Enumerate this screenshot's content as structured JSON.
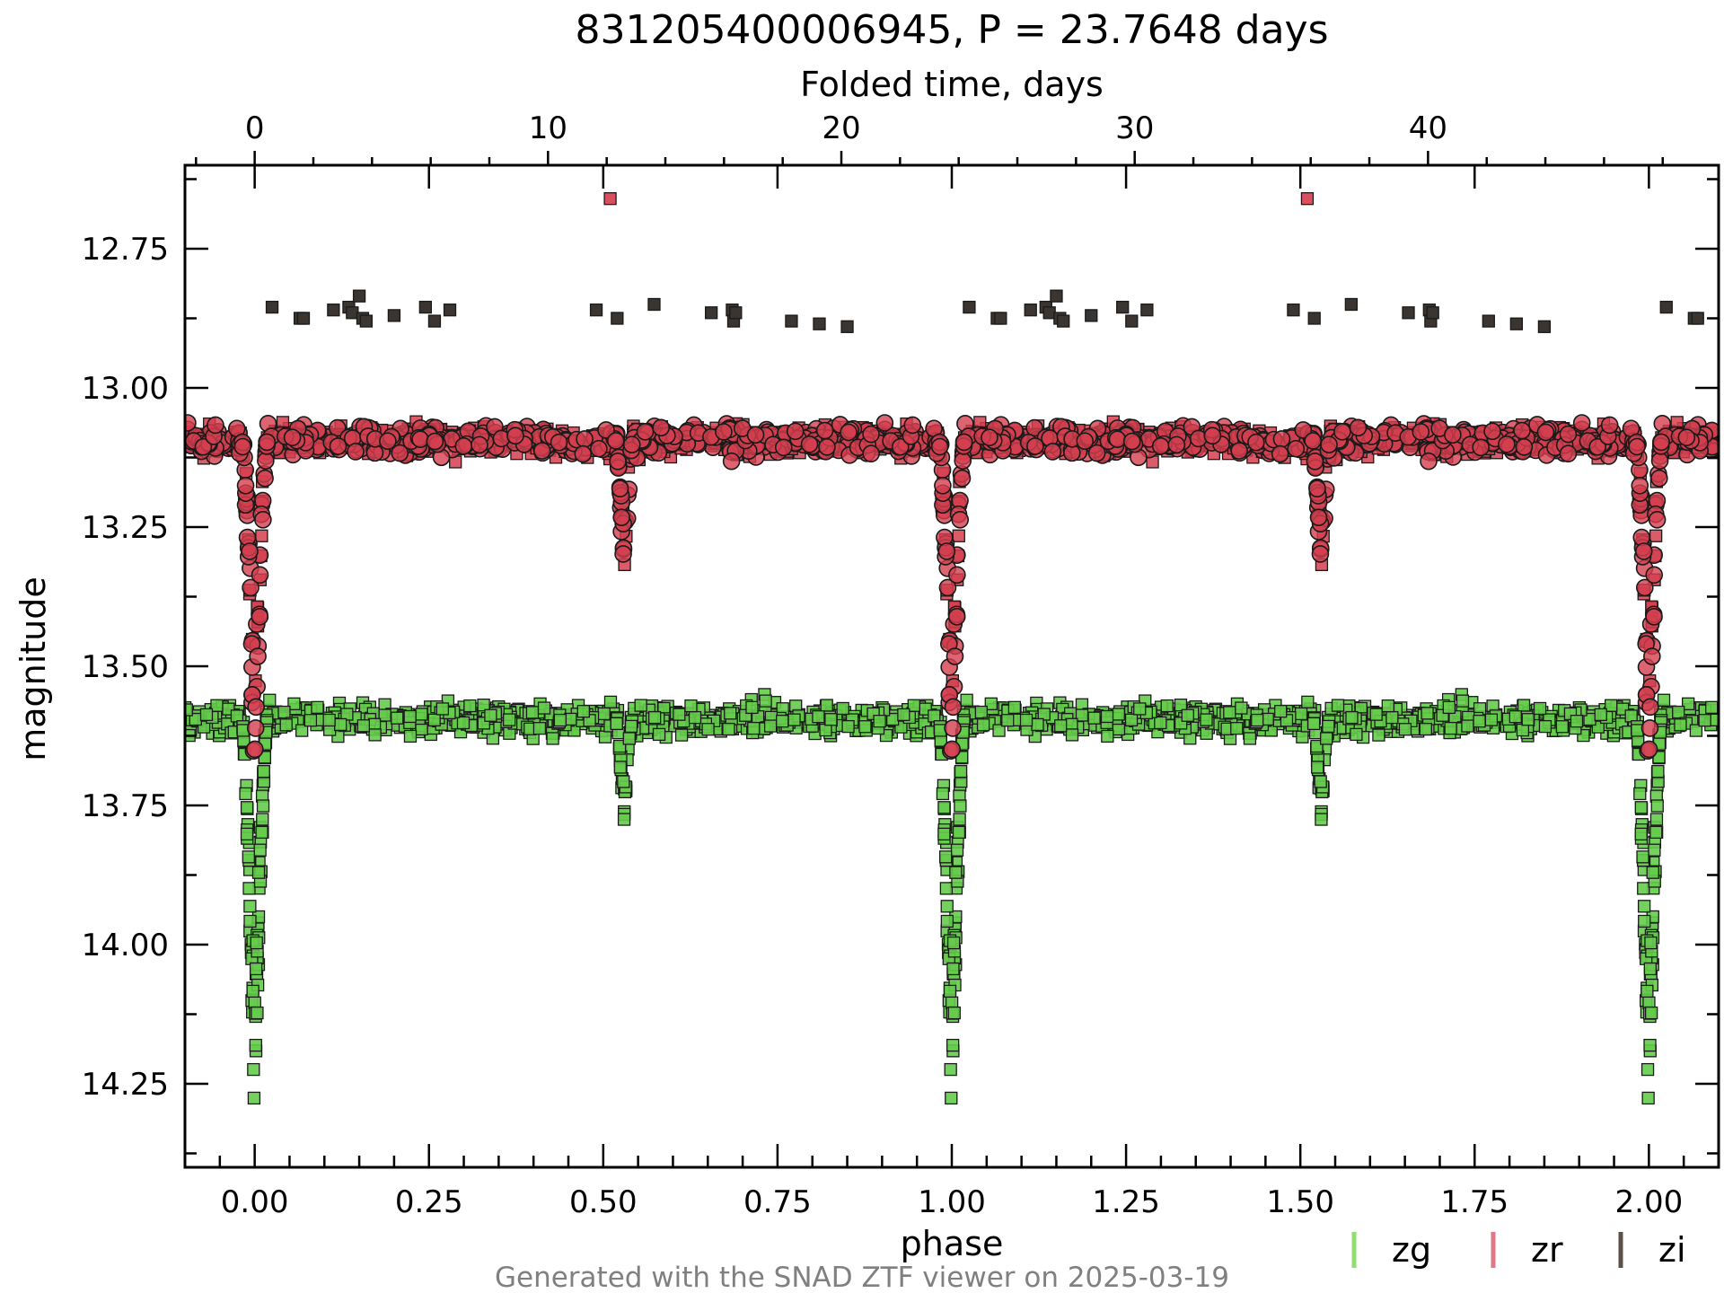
{
  "chart_data": {
    "type": "scatter",
    "title": "831205400006945, P = 23.7648 days",
    "xlabel": "phase",
    "ylabel": "magnitude",
    "top_xlabel": "Folded time, days",
    "period_days": 23.7648,
    "xlim": [
      -0.1,
      2.1
    ],
    "ylim": [
      14.4,
      12.6
    ],
    "y_inverted": true,
    "x_ticks": [
      "0.00",
      "0.25",
      "0.50",
      "0.75",
      "1.00",
      "1.25",
      "1.50",
      "1.75",
      "2.00"
    ],
    "y_ticks": [
      "12.75",
      "13.00",
      "13.25",
      "13.50",
      "13.75",
      "14.00",
      "14.25"
    ],
    "top_ticks": [
      "0",
      "10",
      "20",
      "30",
      "40"
    ],
    "grid": false,
    "legend_position": "below-right",
    "footer": "Generated with the SNAD ZTF viewer on 2025-03-19",
    "series": [
      {
        "name": "zg",
        "color": "#66cc4d",
        "legend_color": "#90dd70",
        "baseline": 13.595,
        "scatter": 0.014,
        "eclipses": [
          {
            "phase": 0.0,
            "depth_mag": 14.33,
            "halfwidth": 0.018
          },
          {
            "phase": 0.53,
            "depth_mag": 13.79,
            "halfwidth": 0.012
          }
        ]
      },
      {
        "name": "zr",
        "color": "#d53e4f",
        "legend_color": "#e07686",
        "baseline": 13.095,
        "scatter": 0.013,
        "eclipses": [
          {
            "phase": 0.0,
            "depth_mag": 13.73,
            "halfwidth": 0.018
          },
          {
            "phase": 0.53,
            "depth_mag": 13.37,
            "halfwidth": 0.012
          }
        ],
        "outliers": [
          {
            "phase": 0.51,
            "mag": 12.66
          },
          {
            "phase": 1.51,
            "mag": 12.66
          }
        ]
      },
      {
        "name": "zi",
        "color": "#3a3530",
        "legend_color": "#5a524a",
        "points": [
          {
            "phase": 0.025,
            "mag": 12.855
          },
          {
            "phase": 0.065,
            "mag": 12.875
          },
          {
            "phase": 0.07,
            "mag": 12.875
          },
          {
            "phase": 0.113,
            "mag": 12.86
          },
          {
            "phase": 0.135,
            "mag": 12.855
          },
          {
            "phase": 0.14,
            "mag": 12.865
          },
          {
            "phase": 0.15,
            "mag": 12.835
          },
          {
            "phase": 0.155,
            "mag": 12.875
          },
          {
            "phase": 0.16,
            "mag": 12.88
          },
          {
            "phase": 0.2,
            "mag": 12.87
          },
          {
            "phase": 0.245,
            "mag": 12.855
          },
          {
            "phase": 0.258,
            "mag": 12.88
          },
          {
            "phase": 0.28,
            "mag": 12.86
          },
          {
            "phase": 0.49,
            "mag": 12.86
          },
          {
            "phase": 0.52,
            "mag": 12.875
          },
          {
            "phase": 0.573,
            "mag": 12.85
          },
          {
            "phase": 0.655,
            "mag": 12.865
          },
          {
            "phase": 0.685,
            "mag": 12.86
          },
          {
            "phase": 0.687,
            "mag": 12.88
          },
          {
            "phase": 0.69,
            "mag": 12.865
          },
          {
            "phase": 0.77,
            "mag": 12.88
          },
          {
            "phase": 0.81,
            "mag": 12.885
          },
          {
            "phase": 0.85,
            "mag": 12.89
          }
        ]
      }
    ]
  }
}
